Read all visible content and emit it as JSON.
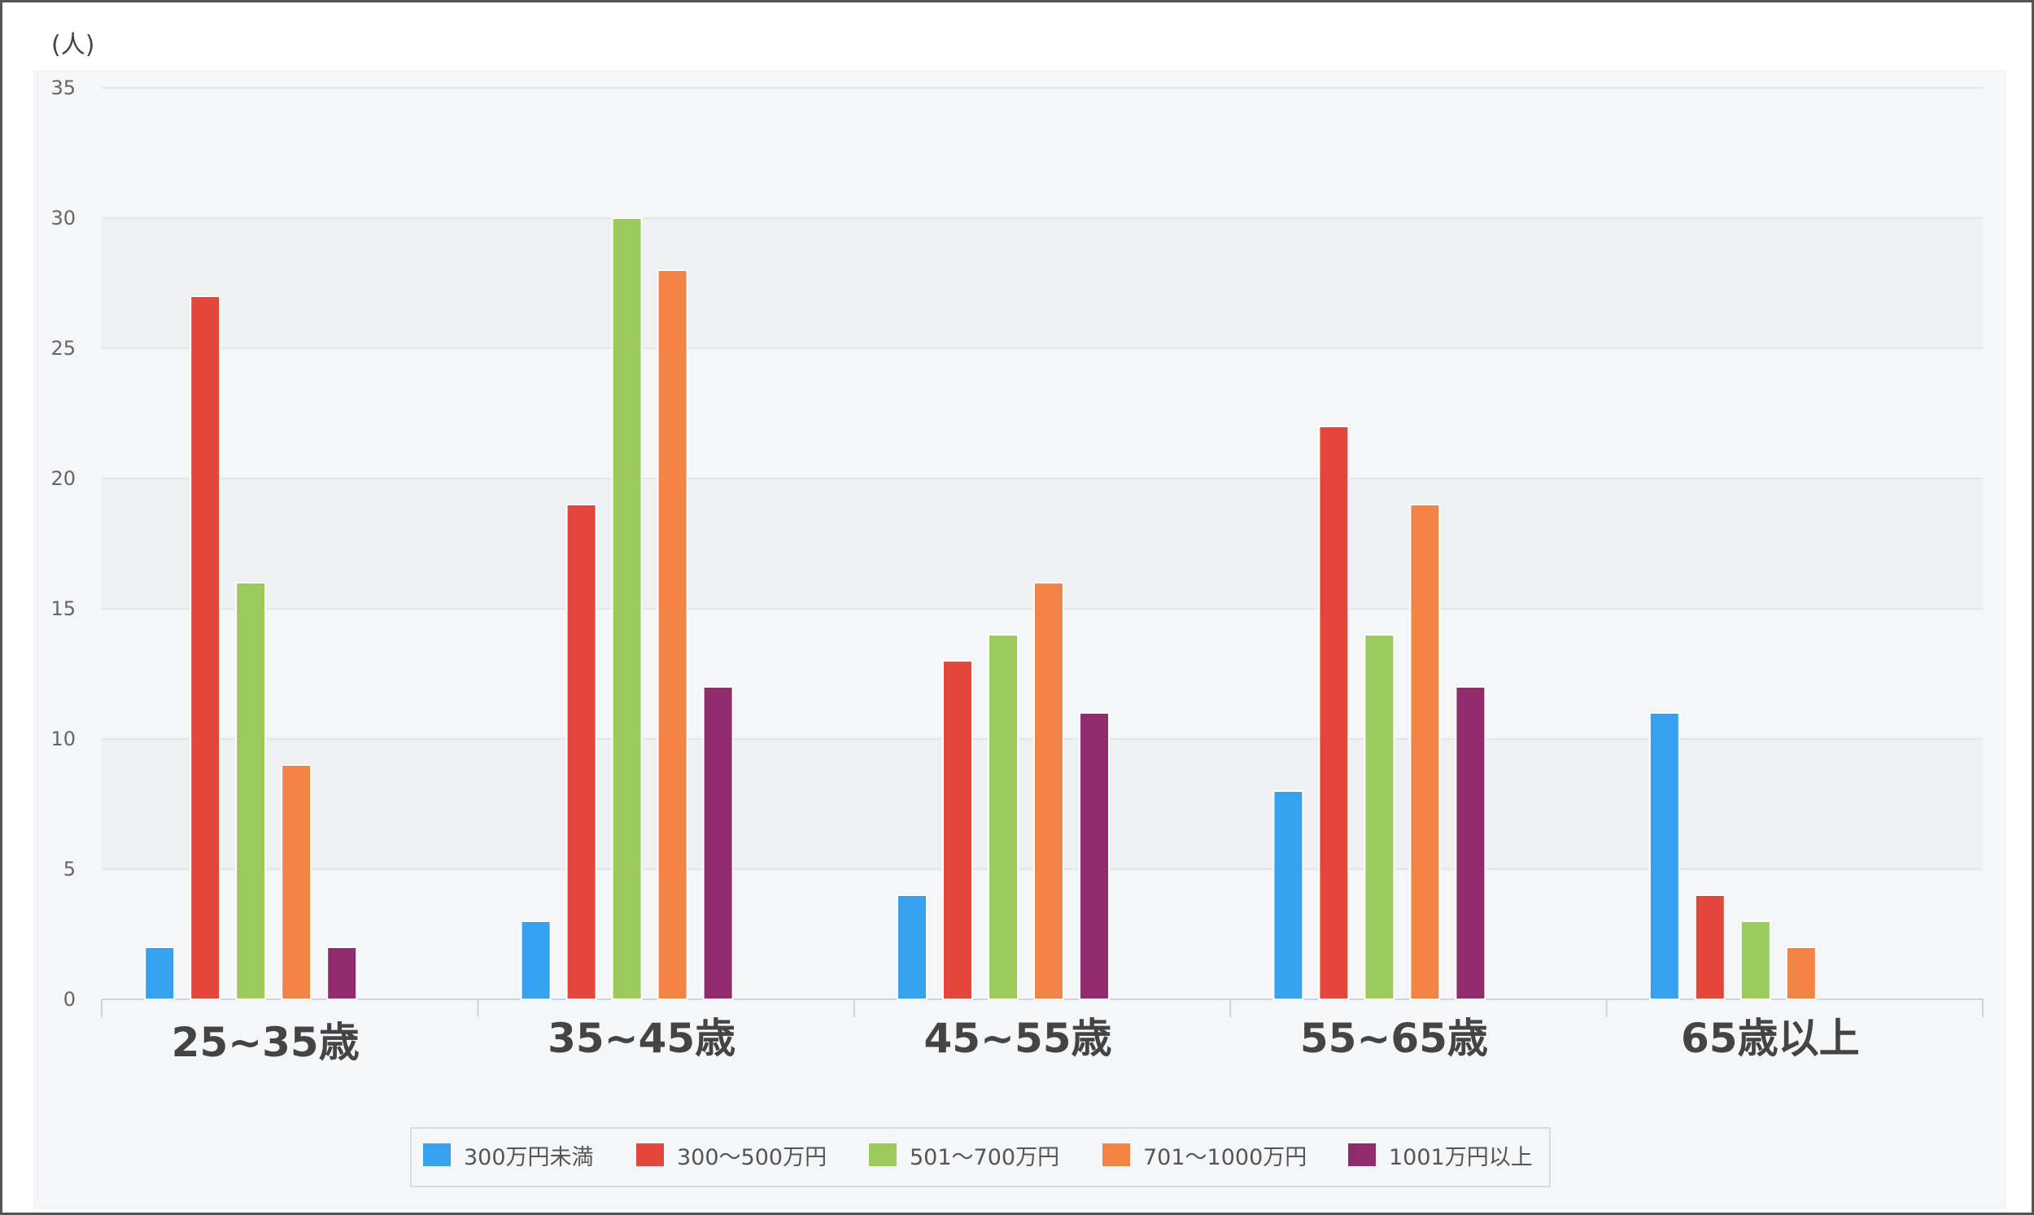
{
  "chart_data": {
    "type": "bar",
    "unit_label": "(人)",
    "categories": [
      "25~35歳",
      "35~45歳",
      "45~55歳",
      "55~65歳",
      "65歳以上"
    ],
    "series": [
      {
        "name": "300万円未満",
        "color": "#36a2ef",
        "values": [
          2,
          3,
          4,
          8,
          11
        ]
      },
      {
        "name": "300～500万円",
        "color": "#e4473a",
        "values": [
          27,
          19,
          13,
          22,
          4
        ]
      },
      {
        "name": "501～700万円",
        "color": "#9ccb5d",
        "values": [
          16,
          30,
          14,
          14,
          3
        ]
      },
      {
        "name": "701～1000万円",
        "color": "#f48445",
        "values": [
          9,
          28,
          16,
          19,
          2
        ]
      },
      {
        "name": "1001万円以上",
        "color": "#922a6e",
        "values": [
          2,
          12,
          11,
          12,
          null
        ]
      }
    ],
    "ylim": [
      0,
      35
    ],
    "yticks": [
      0,
      5,
      10,
      15,
      20,
      25,
      30,
      35
    ],
    "grid": true,
    "legend_position": "bottom"
  }
}
